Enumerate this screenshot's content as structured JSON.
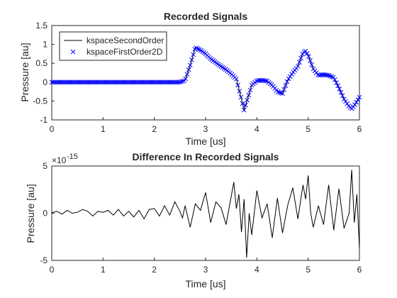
{
  "chart_data": [
    {
      "type": "line",
      "title": "Recorded Signals",
      "xlabel": "Time [us]",
      "ylabel": "Pressure [au]",
      "xlim": [
        0,
        6
      ],
      "ylim": [
        -1,
        1.5
      ],
      "xticks": [
        0,
        1,
        2,
        3,
        4,
        5,
        6
      ],
      "yticks": [
        -1,
        -0.5,
        0,
        0.5,
        1,
        1.5
      ],
      "xtick_labels": [
        "0",
        "1",
        "2",
        "3",
        "4",
        "5",
        "6"
      ],
      "ytick_labels": [
        "-1",
        "-0.5",
        "0",
        "0.5",
        "1",
        "1.5"
      ],
      "grid": false,
      "legend_position": "top-left",
      "series": [
        {
          "name": "kspaceSecondOrder",
          "style": "line",
          "color": "#000000",
          "x": [
            0,
            2.5,
            2.6,
            2.7,
            2.8,
            2.9,
            3.0,
            3.1,
            3.2,
            3.3,
            3.4,
            3.5,
            3.6,
            3.7,
            3.75,
            3.8,
            3.9,
            4.0,
            4.1,
            4.2,
            4.3,
            4.4,
            4.5,
            4.6,
            4.7,
            4.8,
            4.9,
            4.95,
            5.0,
            5.1,
            5.2,
            5.3,
            5.4,
            5.5,
            5.6,
            5.7,
            5.8,
            5.85,
            5.9,
            6.0
          ],
          "y": [
            0,
            0,
            0.05,
            0.45,
            0.92,
            0.85,
            0.75,
            0.62,
            0.52,
            0.42,
            0.33,
            0.22,
            0.08,
            -0.45,
            -0.74,
            -0.52,
            -0.08,
            0.04,
            0.05,
            0.03,
            -0.08,
            -0.25,
            -0.3,
            0.05,
            0.25,
            0.42,
            0.78,
            0.82,
            0.72,
            0.35,
            0.18,
            0.2,
            0.18,
            0.12,
            -0.15,
            -0.45,
            -0.65,
            -0.7,
            -0.62,
            -0.4
          ]
        },
        {
          "name": "kspaceFirstOrder2D",
          "style": "markers",
          "marker": "x",
          "color": "#0000ff",
          "sample_step": 0.03
        }
      ]
    },
    {
      "type": "line",
      "title": "Difference In Recorded Signals",
      "xlabel": "Time [us]",
      "ylabel": "Pressure [au]",
      "exponent_label": "-15",
      "xlim": [
        0,
        6
      ],
      "ylim": [
        -5,
        5
      ],
      "xticks": [
        0,
        1,
        2,
        3,
        4,
        5,
        6
      ],
      "yticks": [
        -5,
        0,
        5
      ],
      "xtick_labels": [
        "0",
        "1",
        "2",
        "3",
        "4",
        "5",
        "6"
      ],
      "ytick_labels": [
        "-5",
        "0",
        "5"
      ],
      "grid": false,
      "series": [
        {
          "color": "#000000",
          "x": [
            0,
            0.1,
            0.2,
            0.3,
            0.4,
            0.5,
            0.6,
            0.7,
            0.8,
            0.9,
            1.0,
            1.1,
            1.2,
            1.3,
            1.4,
            1.5,
            1.6,
            1.7,
            1.8,
            1.9,
            2.0,
            2.1,
            2.2,
            2.3,
            2.4,
            2.5,
            2.55,
            2.6,
            2.7,
            2.8,
            2.9,
            3.0,
            3.1,
            3.2,
            3.3,
            3.4,
            3.5,
            3.55,
            3.6,
            3.65,
            3.7,
            3.75,
            3.8,
            3.85,
            3.9,
            4.0,
            4.1,
            4.2,
            4.3,
            4.4,
            4.5,
            4.6,
            4.7,
            4.8,
            4.9,
            4.95,
            5.0,
            5.05,
            5.1,
            5.2,
            5.3,
            5.4,
            5.5,
            5.6,
            5.7,
            5.8,
            5.85,
            5.9,
            5.95,
            6.0
          ],
          "y": [
            0.05,
            0.2,
            -0.1,
            0.3,
            0.0,
            0.1,
            0.4,
            0.2,
            -0.3,
            0.2,
            0.1,
            0.3,
            -0.2,
            0.4,
            -0.3,
            0.2,
            -0.4,
            0.3,
            -0.6,
            0.4,
            0.5,
            -0.3,
            0.8,
            -0.2,
            1.2,
            0.2,
            -0.5,
            0.8,
            -1.5,
            1.0,
            0.3,
            2.2,
            -1.0,
            1.2,
            0.6,
            -1.2,
            1.8,
            3.3,
            0.5,
            2.0,
            -2.0,
            1.5,
            -4.7,
            0.0,
            -2.3,
            2.4,
            -0.5,
            1.0,
            -2.6,
            1.6,
            -2.1,
            0.8,
            2.7,
            -0.6,
            3.0,
            1.5,
            4.0,
            0.0,
            -1.5,
            0.8,
            -1.2,
            3.0,
            -1.8,
            2.6,
            -1.6,
            0.0,
            4.6,
            -1.0,
            2.0,
            -3.7
          ]
        }
      ]
    }
  ]
}
